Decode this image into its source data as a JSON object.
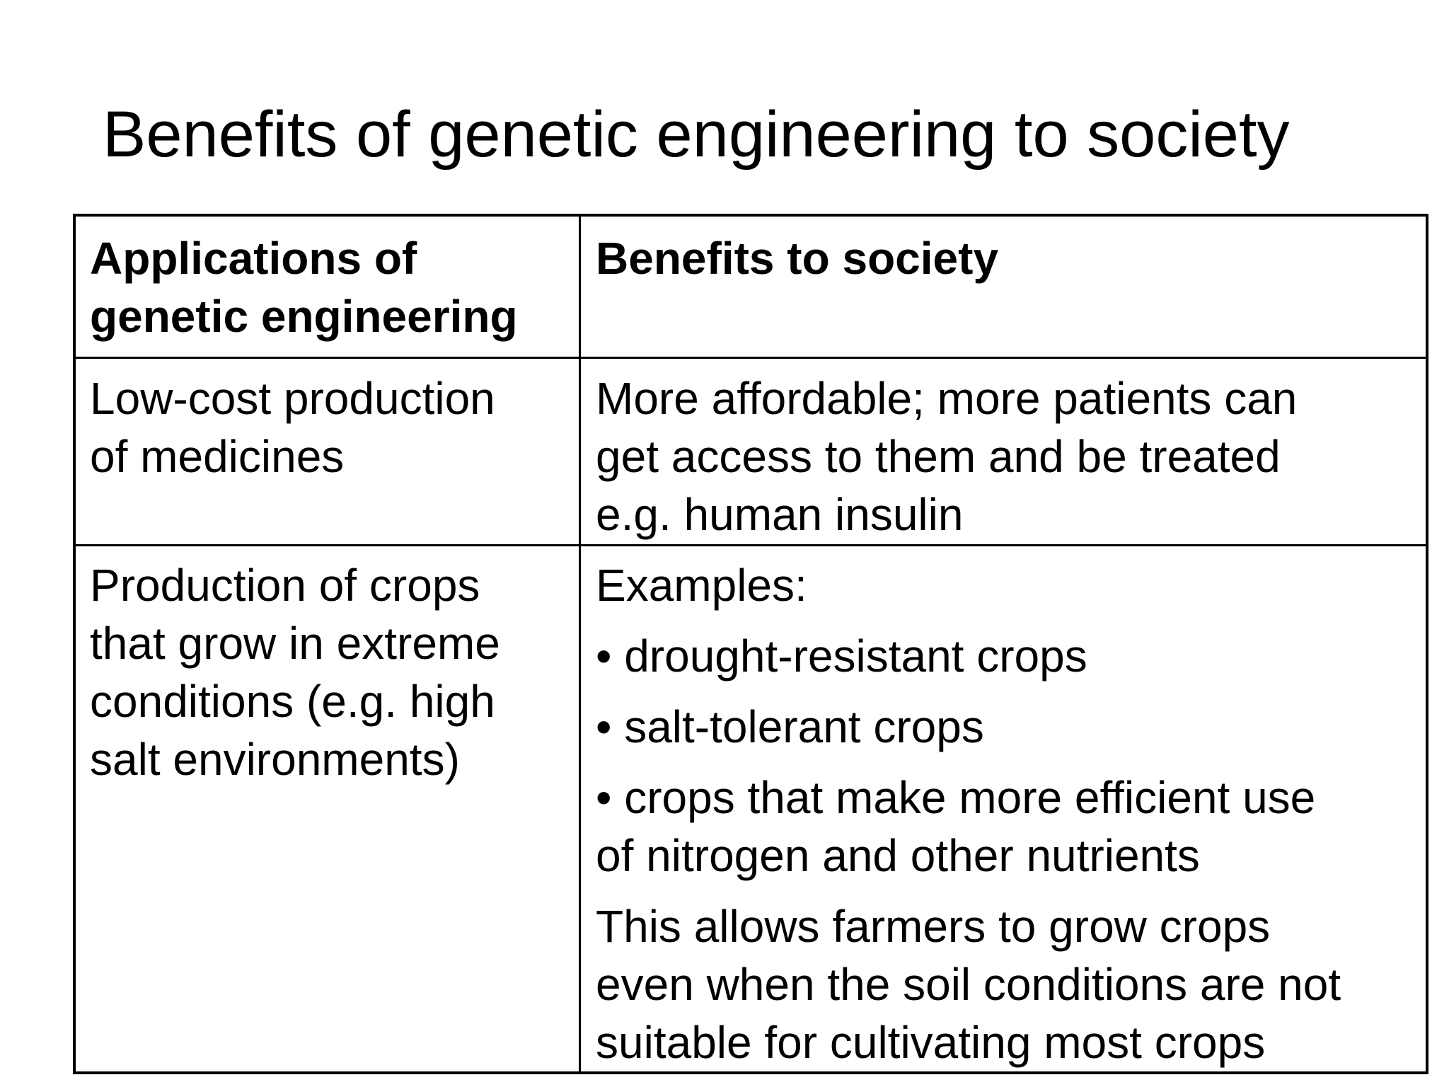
{
  "title": "Benefits of genetic engineering to society",
  "table": {
    "headers": {
      "left": [
        "Applications of",
        "genetic engineering"
      ],
      "right": "Benefits to society"
    },
    "rows": [
      {
        "left": [
          "Low-cost production",
          "of medicines"
        ],
        "right": [
          "More affordable;  more patients can",
          "get access to them and be treated",
          "e.g. human insulin"
        ]
      },
      {
        "left": [
          "Production of crops",
          "that grow in extreme",
          "conditions (e.g. high",
          "salt environments)"
        ],
        "right": {
          "intro": "Examples:",
          "bullets": [
            [
              "• drought-resistant crops"
            ],
            [
              "• salt-tolerant crops"
            ],
            [
              "• crops that make more efficient use",
              "of nitrogen and other nutrients"
            ]
          ],
          "conclusion": [
            "This allows farmers to grow crops",
            "even when the soil conditions are not",
            "suitable for cultivating most crops"
          ]
        }
      }
    ]
  }
}
